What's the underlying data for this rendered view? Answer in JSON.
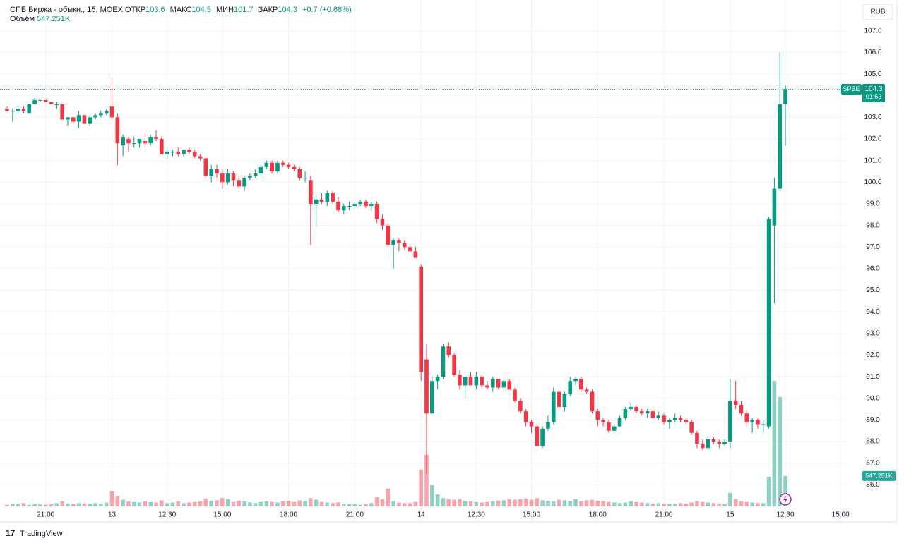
{
  "chart_data": {
    "type": "candlestick",
    "title": "СПБ Биржа - обыкн., 15, MOEX",
    "open_label": "ОТКР",
    "high_label": "МАКС",
    "low_label": "МИН",
    "close_label": "ЗАКР",
    "change": "+0.7 (+0.68%)",
    "volume_title": "Объём",
    "volume_label": "547.251K",
    "currency": "RUB",
    "symbol": "SPBE",
    "countdown": "01:53",
    "brand": "TradingView",
    "up_color": "#089981",
    "down_color": "#f23645",
    "grid": true,
    "xlim": [
      -1.28,
      152.0
    ],
    "ylim": [
      85.0,
      108.43
    ],
    "xticks": [
      {
        "value": 7,
        "label": "21:00"
      },
      {
        "value": 19,
        "label": "13"
      },
      {
        "value": 29,
        "label": "12:30"
      },
      {
        "value": 39,
        "label": "15:00"
      },
      {
        "value": 51,
        "label": "18:00"
      },
      {
        "value": 63,
        "label": "21:00"
      },
      {
        "value": 75,
        "label": "14"
      },
      {
        "value": 85,
        "label": "12:30"
      },
      {
        "value": 95,
        "label": "15:00"
      },
      {
        "value": 107,
        "label": "18:00"
      },
      {
        "value": 119,
        "label": "21:00"
      },
      {
        "value": 131,
        "label": "15"
      },
      {
        "value": 141,
        "label": "12:30"
      },
      {
        "value": 151,
        "label": "15:00"
      }
    ],
    "yticks": [
      {
        "value": 86,
        "label": "86.0"
      },
      {
        "value": 87,
        "label": "87.0"
      },
      {
        "value": 88,
        "label": "88.0"
      },
      {
        "value": 89,
        "label": "89.0"
      },
      {
        "value": 90,
        "label": "90.0"
      },
      {
        "value": 91,
        "label": "91.0"
      },
      {
        "value": 92,
        "label": "92.0"
      },
      {
        "value": 93,
        "label": "93.0"
      },
      {
        "value": 94,
        "label": "94.0"
      },
      {
        "value": 95,
        "label": "95.0"
      },
      {
        "value": 96,
        "label": "96.0"
      },
      {
        "value": 97,
        "label": "97.0"
      },
      {
        "value": 98,
        "label": "98.0"
      },
      {
        "value": 99,
        "label": "99.0"
      },
      {
        "value": 100,
        "label": "100.0"
      },
      {
        "value": 101,
        "label": "101.0"
      },
      {
        "value": 102,
        "label": "102.0"
      },
      {
        "value": 103,
        "label": "103.0"
      },
      {
        "value": 104,
        "label": "104.0"
      },
      {
        "value": 105,
        "label": "105.0"
      },
      {
        "value": 106,
        "label": "106.0"
      },
      {
        "value": 107,
        "label": "107.0"
      }
    ],
    "open": [
      103.4,
      103.3,
      103.3,
      103.4,
      103.2,
      103.6,
      103.8,
      103.8,
      103.7,
      103.6,
      103.6,
      102.9,
      103.0,
      102.8,
      103.1,
      102.7,
      103.0,
      103.1,
      103.2,
      103.5,
      103.0,
      101.7,
      102.0,
      101.8,
      101.8,
      101.9,
      101.8,
      102.1,
      102.0,
      101.3,
      101.4,
      101.4,
      101.3,
      101.5,
      101.4,
      101.2,
      101.1,
      100.3,
      100.6,
      100.4,
      100.0,
      100.4,
      100.1,
      99.8,
      100.2,
      100.3,
      100.4,
      100.7,
      100.9,
      100.5,
      100.9,
      100.8,
      100.7,
      100.6,
      100.2,
      100.1,
      99.0,
      99.2,
      99.1,
      99.5,
      99.1,
      98.7,
      98.9,
      98.9,
      99.0,
      99.1,
      98.9,
      99.0,
      98.3,
      98.0,
      97.1,
      97.3,
      97.2,
      97.0,
      96.8,
      96.1,
      91.8,
      89.3,
      90.8,
      91.0,
      92.4,
      92.0,
      91.1,
      90.6,
      91.0,
      90.6,
      91.0,
      90.6,
      90.5,
      90.9,
      90.5,
      90.8,
      90.4,
      89.9,
      89.4,
      88.9,
      88.7,
      87.8,
      88.6,
      88.9,
      90.3,
      89.6,
      90.2,
      90.8,
      90.9,
      90.4,
      90.3,
      89.4,
      89.0,
      88.9,
      88.5,
      88.7,
      89.1,
      89.5,
      89.6,
      89.4,
      89.3,
      89.4,
      89.1,
      89.2,
      88.9,
      89.0,
      89.1,
      89.0,
      88.9,
      88.4,
      87.9,
      87.7,
      88.1,
      88.0,
      87.9,
      88.0,
      89.9,
      89.7,
      89.3,
      88.9,
      89.0,
      88.8,
      88.7,
      98.0,
      99.7,
      103.6
    ],
    "high": [
      103.5,
      103.4,
      103.5,
      103.5,
      103.6,
      103.9,
      103.8,
      103.8,
      103.7,
      103.7,
      103.6,
      103.0,
      103.0,
      103.3,
      103.1,
      103.1,
      103.2,
      103.3,
      103.4,
      104.8,
      103.2,
      102.2,
      102.1,
      102.1,
      102.0,
      102.3,
      102.2,
      102.4,
      102.1,
      101.6,
      101.5,
      101.6,
      101.5,
      101.6,
      101.5,
      101.3,
      101.2,
      100.8,
      100.8,
      100.6,
      100.6,
      100.5,
      100.3,
      100.3,
      100.4,
      100.6,
      100.8,
      101.0,
      101.0,
      101.0,
      101.0,
      100.9,
      100.8,
      100.7,
      100.5,
      100.3,
      99.4,
      99.5,
      99.6,
      99.6,
      99.3,
      99.0,
      99.1,
      99.1,
      99.2,
      99.2,
      99.1,
      99.1,
      98.5,
      98.1,
      97.4,
      97.4,
      97.3,
      97.1,
      97.0,
      96.2,
      92.5,
      91.0,
      91.1,
      92.5,
      92.6,
      92.1,
      91.3,
      91.0,
      91.2,
      91.2,
      91.1,
      90.8,
      91.0,
      90.9,
      91.0,
      90.9,
      90.5,
      90.0,
      89.5,
      89.0,
      88.8,
      88.7,
      89.2,
      90.5,
      90.4,
      90.3,
      91.0,
      91.0,
      91.0,
      90.5,
      90.4,
      89.5,
      89.1,
      89.0,
      88.8,
      89.2,
      89.6,
      89.8,
      89.7,
      89.5,
      89.5,
      89.5,
      89.4,
      89.3,
      89.1,
      89.3,
      89.2,
      89.1,
      89.0,
      88.5,
      88.1,
      88.2,
      88.2,
      88.1,
      88.1,
      90.9,
      90.8,
      89.9,
      89.4,
      89.1,
      89.1,
      89.0,
      98.4,
      100.2,
      106.0,
      104.5
    ],
    "low": [
      103.3,
      102.8,
      103.2,
      103.2,
      103.2,
      103.6,
      103.7,
      103.7,
      103.6,
      103.4,
      102.9,
      102.6,
      102.7,
      102.5,
      102.7,
      102.6,
      102.9,
      103.0,
      103.1,
      102.9,
      100.8,
      101.2,
      101.4,
      101.6,
      101.6,
      101.6,
      101.7,
      101.9,
      101.3,
      101.1,
      101.2,
      101.2,
      101.2,
      101.3,
      101.1,
      101.0,
      100.2,
      100.0,
      100.2,
      99.7,
      99.9,
      99.8,
      99.7,
      99.6,
      100.1,
      100.2,
      100.3,
      100.6,
      100.4,
      100.4,
      100.7,
      100.6,
      100.5,
      100.1,
      100.0,
      97.1,
      97.9,
      99.0,
      98.9,
      99.0,
      98.6,
      98.5,
      98.7,
      98.8,
      98.9,
      98.8,
      98.7,
      98.1,
      97.8,
      97.0,
      96.0,
      96.8,
      96.9,
      96.7,
      96.5,
      90.8,
      86.5,
      89.3,
      90.4,
      90.9,
      91.9,
      91.0,
      90.4,
      90.0,
      90.6,
      90.4,
      90.5,
      90.4,
      90.3,
      90.4,
      90.3,
      90.4,
      89.8,
      89.3,
      88.7,
      88.4,
      87.8,
      87.7,
      88.5,
      88.8,
      89.5,
      89.4,
      90.1,
      90.6,
      90.3,
      90.2,
      89.3,
      88.7,
      88.7,
      88.4,
      88.5,
      88.7,
      89.0,
      89.4,
      89.3,
      89.2,
      89.1,
      89.0,
      89.0,
      88.8,
      88.6,
      88.9,
      88.9,
      88.8,
      88.3,
      87.7,
      87.6,
      87.6,
      87.9,
      87.7,
      87.8,
      87.7,
      89.5,
      89.2,
      88.7,
      88.4,
      88.6,
      88.4,
      88.6,
      94.4,
      99.6,
      101.7
    ],
    "close": [
      103.3,
      103.3,
      103.4,
      103.3,
      103.6,
      103.8,
      103.8,
      103.7,
      103.6,
      103.6,
      102.9,
      103.0,
      102.8,
      103.1,
      102.7,
      103.0,
      103.1,
      103.2,
      103.3,
      103.0,
      101.8,
      102.1,
      101.8,
      101.8,
      102.0,
      101.8,
      102.1,
      102.0,
      101.3,
      101.4,
      101.4,
      101.3,
      101.5,
      101.4,
      101.2,
      101.1,
      100.3,
      100.6,
      100.4,
      100.0,
      100.4,
      100.1,
      99.8,
      100.2,
      100.3,
      100.4,
      100.7,
      100.9,
      100.5,
      100.9,
      100.8,
      100.7,
      100.6,
      100.2,
      100.2,
      99.0,
      99.2,
      99.1,
      99.5,
      99.1,
      98.7,
      98.9,
      98.9,
      99.0,
      99.1,
      98.9,
      99.0,
      98.3,
      98.0,
      97.1,
      97.3,
      97.2,
      97.0,
      96.8,
      96.5,
      91.2,
      89.3,
      90.8,
      91.0,
      92.4,
      92.0,
      91.1,
      90.6,
      91.0,
      90.6,
      91.0,
      90.6,
      90.5,
      90.9,
      90.5,
      90.8,
      90.4,
      89.9,
      89.4,
      88.9,
      88.7,
      87.8,
      88.6,
      88.9,
      90.3,
      89.6,
      90.2,
      90.8,
      90.9,
      90.4,
      90.3,
      89.4,
      89.0,
      88.9,
      88.5,
      88.7,
      89.1,
      89.5,
      89.6,
      89.4,
      89.3,
      89.4,
      89.1,
      89.2,
      88.9,
      89.0,
      89.1,
      89.0,
      88.9,
      88.4,
      87.9,
      87.7,
      88.1,
      88.0,
      87.9,
      88.0,
      89.9,
      89.7,
      89.3,
      88.9,
      89.0,
      88.8,
      88.8,
      98.3,
      99.7,
      103.6,
      104.3
    ],
    "volume": [
      30000,
      50000,
      40000,
      60000,
      30000,
      40000,
      35000,
      30000,
      40000,
      60000,
      90000,
      50000,
      45000,
      60000,
      55000,
      50000,
      60000,
      45000,
      70000,
      280000,
      190000,
      120000,
      90000,
      80000,
      70000,
      90000,
      80000,
      70000,
      110000,
      60000,
      70000,
      90000,
      60000,
      70000,
      80000,
      90000,
      140000,
      100000,
      110000,
      150000,
      130000,
      80000,
      100000,
      90000,
      70000,
      60000,
      80000,
      90000,
      80000,
      70000,
      90000,
      100000,
      80000,
      110000,
      90000,
      150000,
      120000,
      80000,
      70000,
      60000,
      70000,
      50000,
      40000,
      40000,
      30000,
      40000,
      60000,
      170000,
      130000,
      320000,
      90000,
      70000,
      60000,
      60000,
      80000,
      660000,
      930000,
      380000,
      215000,
      150000,
      130000,
      120000,
      130000,
      100000,
      90000,
      80000,
      70000,
      80000,
      90000,
      100000,
      110000,
      130000,
      120000,
      130000,
      140000,
      120000,
      150000,
      110000,
      100000,
      90000,
      120000,
      110000,
      100000,
      130000,
      90000,
      110000,
      120000,
      100000,
      90000,
      80000,
      70000,
      60000,
      70000,
      90000,
      80000,
      70000,
      60000,
      50000,
      60000,
      50000,
      40000,
      50000,
      60000,
      50000,
      70000,
      90000,
      80000,
      70000,
      60000,
      50000,
      40000,
      240000,
      130000,
      90000,
      80000,
      70000,
      60000,
      60000,
      535000,
      2260000,
      1970000,
      547251
    ]
  }
}
